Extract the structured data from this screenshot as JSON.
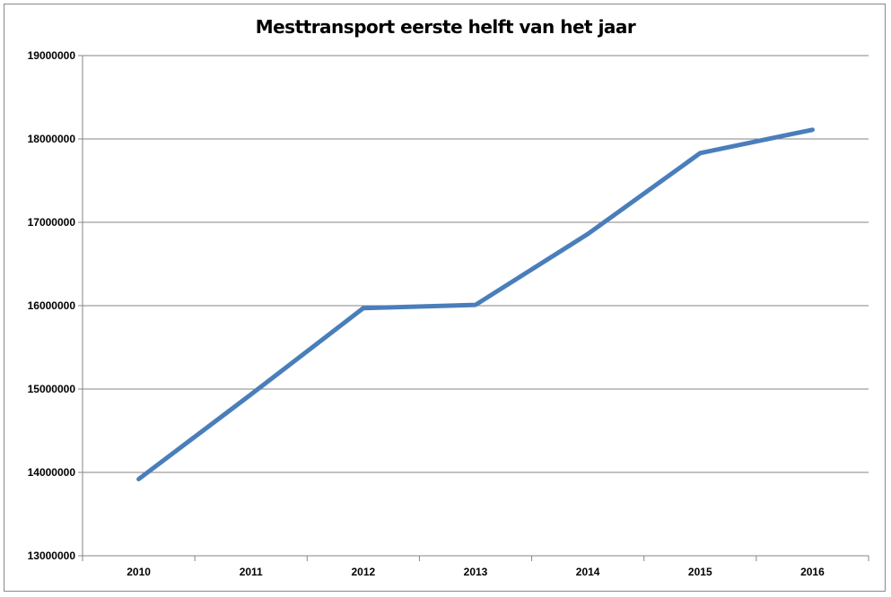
{
  "chart_data": {
    "type": "line",
    "title": "Mesttransport eerste helft van het jaar",
    "xlabel": "",
    "ylabel": "",
    "categories": [
      "2010",
      "2011",
      "2012",
      "2013",
      "2014",
      "2015",
      "2016"
    ],
    "series": [
      {
        "name": "Mesttransport",
        "values": [
          13920000,
          14935000,
          15970000,
          16010000,
          16860000,
          17830000,
          18110000
        ],
        "color": "#4a7ebb"
      }
    ],
    "ylim": [
      13000000,
      19000000
    ],
    "yticks": [
      "13000000",
      "14000000",
      "15000000",
      "16000000",
      "17000000",
      "18000000",
      "19000000"
    ],
    "grid": true,
    "legend": "none"
  }
}
